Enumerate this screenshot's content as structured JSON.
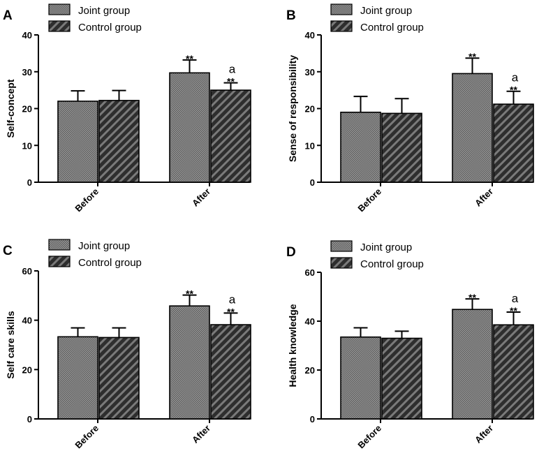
{
  "chart_data": [
    {
      "panel": "A",
      "type": "bar",
      "categories": [
        "Before",
        "After"
      ],
      "ylabel": "Self-concept",
      "ylim": [
        0,
        40
      ],
      "yticks": [
        0,
        10,
        20,
        30,
        40
      ],
      "series": [
        {
          "name": "Joint group",
          "values": [
            22,
            29.7
          ],
          "errors": [
            2.8,
            3.5
          ],
          "annotations": [
            "",
            "**"
          ]
        },
        {
          "name": "Control group",
          "values": [
            22.2,
            25
          ],
          "errors": [
            2.7,
            2.0
          ],
          "annotations": [
            "",
            "**"
          ],
          "extra": [
            "",
            "a"
          ]
        }
      ]
    },
    {
      "panel": "B",
      "type": "bar",
      "categories": [
        "Before",
        "After"
      ],
      "ylabel": "Sense of responsibility",
      "ylim": [
        0,
        40
      ],
      "yticks": [
        0,
        10,
        20,
        30,
        40
      ],
      "series": [
        {
          "name": "Joint group",
          "values": [
            19,
            29.5
          ],
          "errors": [
            4.3,
            4.2
          ],
          "annotations": [
            "",
            "**"
          ]
        },
        {
          "name": "Control group",
          "values": [
            18.7,
            21.2
          ],
          "errors": [
            4.0,
            3.5
          ],
          "annotations": [
            "",
            "**"
          ],
          "extra": [
            "",
            "a"
          ]
        }
      ]
    },
    {
      "panel": "C",
      "type": "bar",
      "categories": [
        "Before",
        "After"
      ],
      "ylabel": "Self care skills",
      "ylim": [
        0,
        60
      ],
      "yticks": [
        0,
        20,
        40,
        60
      ],
      "series": [
        {
          "name": "Joint group",
          "values": [
            33.3,
            45.8
          ],
          "errors": [
            3.6,
            4.4
          ],
          "annotations": [
            "",
            "**"
          ]
        },
        {
          "name": "Control group",
          "values": [
            33,
            38.2
          ],
          "errors": [
            3.9,
            4.7
          ],
          "annotations": [
            "",
            "**"
          ],
          "extra": [
            "",
            "a"
          ]
        }
      ]
    },
    {
      "panel": "D",
      "type": "bar",
      "categories": [
        "Before",
        "After"
      ],
      "ylabel": "Health knowledge",
      "ylim": [
        0,
        60
      ],
      "yticks": [
        0,
        20,
        40,
        60
      ],
      "series": [
        {
          "name": "Joint group",
          "values": [
            33.5,
            44.8
          ],
          "errors": [
            3.8,
            4.3
          ],
          "annotations": [
            "",
            "**"
          ]
        },
        {
          "name": "Control group",
          "values": [
            33,
            38.5
          ],
          "errors": [
            2.9,
            5.2
          ],
          "annotations": [
            "",
            "**"
          ],
          "extra": [
            "",
            "a"
          ]
        }
      ]
    }
  ]
}
